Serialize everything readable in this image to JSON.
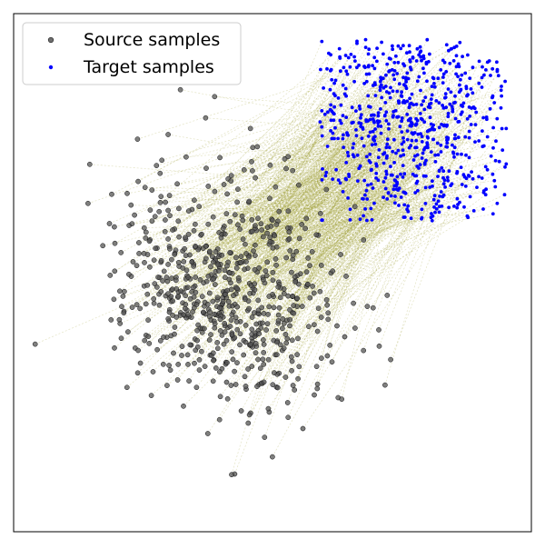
{
  "chart_data": {
    "type": "scatter",
    "title": "",
    "xlabel": "",
    "ylabel": "",
    "xlim": [
      -4.0,
      3.3
    ],
    "ylim": [
      -3.2,
      3.8
    ],
    "grid": false,
    "axis_ticks": false,
    "legend": {
      "placement": "top-left",
      "entries": [
        {
          "label": "Source samples",
          "marker": "circle",
          "color": "#555555",
          "edge": "#000000"
        },
        {
          "label": "Target samples",
          "marker": "dot",
          "color": "#0000ff"
        }
      ]
    },
    "mapping_lines": {
      "color": "#9a9a2a",
      "style": "dashed",
      "connects": "each source sample to its matched target sample"
    },
    "series": [
      {
        "name": "Source samples",
        "color": "#555555",
        "generator": {
          "kind": "gaussian",
          "n": 700,
          "mean": [
            -1.0,
            0.1
          ],
          "std": [
            0.75,
            0.8
          ],
          "correlation": -0.1,
          "seed": 7
        }
      },
      {
        "name": "Target samples",
        "color": "#0000ff",
        "generator": {
          "kind": "gaussian_clipped",
          "n": 700,
          "mean": [
            1.6,
            2.4
          ],
          "std": [
            0.8,
            1.0
          ],
          "correlation": 0.0,
          "clip_x": [
            0.3,
            2.95
          ],
          "clip_y": [
            1.0,
            3.45
          ],
          "seed": 11
        }
      }
    ]
  }
}
